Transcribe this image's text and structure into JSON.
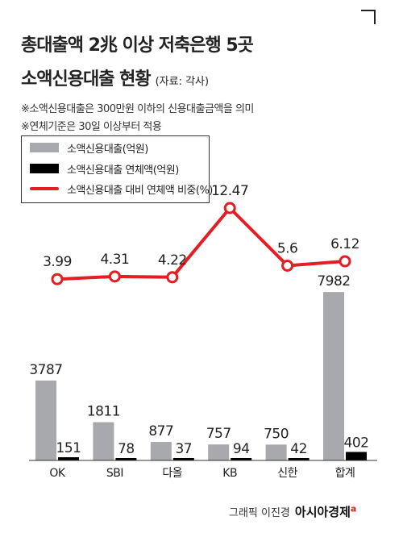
{
  "header": {
    "title_line1": "총대출액 2兆 이상 저축은행 5곳",
    "title_line2": "소액신용대출 현황",
    "source": "(자료: 각사)",
    "notes": [
      "※소액신용대출은 300만원 이하의 신용대출금액을 의미",
      "※연체기준은 30일 이상부터 적용"
    ]
  },
  "legend": {
    "items": [
      {
        "label": "소액신용대출(억원)",
        "color": "#a7a9ac"
      },
      {
        "label": "소액신용대출 연체액(억원)",
        "color": "#000000"
      },
      {
        "label": "소액신용대출 대비 연체액 비중(%)",
        "color": "#e31e24"
      }
    ]
  },
  "chart_data": {
    "type": "bar",
    "categories": [
      "OK",
      "SBI",
      "다올",
      "KB",
      "신한",
      "합계"
    ],
    "series": [
      {
        "name": "소액신용대출(억원)",
        "type": "bar",
        "color": "#a7a9ac",
        "values": [
          3787,
          1811,
          877,
          757,
          750,
          7982
        ],
        "labels": [
          "3787",
          "1811",
          "877",
          "757",
          "750",
          "7982"
        ]
      },
      {
        "name": "소액신용대출 연체액(억원)",
        "type": "bar",
        "color": "#000000",
        "values": [
          151,
          78,
          37,
          94,
          42,
          402
        ],
        "labels": [
          "151",
          "78",
          "37",
          "94",
          "42",
          "402"
        ]
      },
      {
        "name": "소액신용대출 대비 연체액 비중(%)",
        "type": "line",
        "color": "#e31e24",
        "values": [
          3.99,
          4.31,
          4.22,
          12.47,
          5.6,
          6.12
        ],
        "labels": [
          "3.99",
          "4.31",
          "4.22",
          "12.47",
          "5.6",
          "6.12"
        ]
      }
    ]
  },
  "credit": {
    "text": "그래픽 이진경",
    "brand": "아시아경제",
    "brand_mark": "a"
  }
}
